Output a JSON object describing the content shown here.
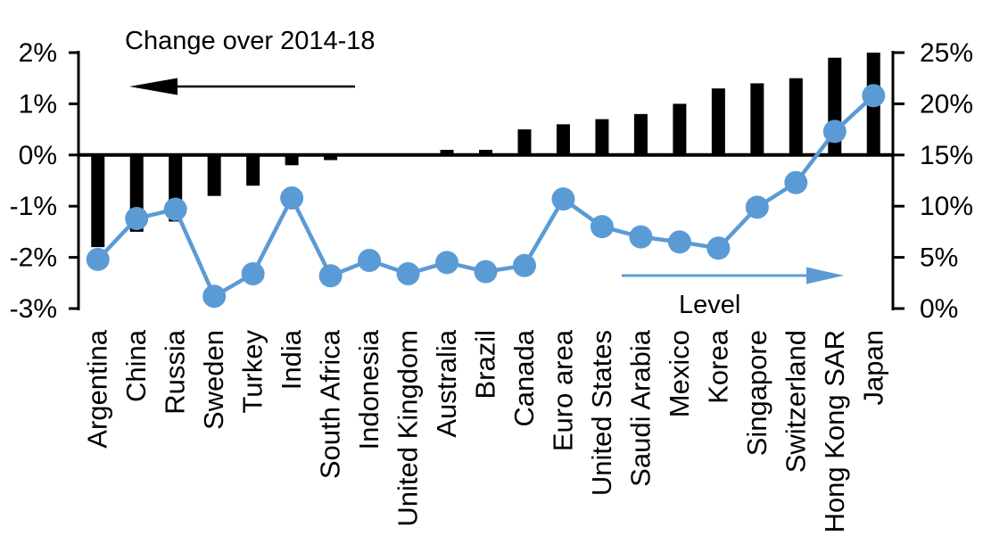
{
  "chart_data": {
    "type": "bar",
    "subtype": "dual-axis bar + line",
    "title": "",
    "categories": [
      "Argentina",
      "China",
      "Russia",
      "Sweden",
      "Turkey",
      "India",
      "South Africa",
      "Indonesia",
      "United Kingdom",
      "Australia",
      "Brazil",
      "Canada",
      "Euro area",
      "United States",
      "Saudi Arabia",
      "Mexico",
      "Korea",
      "Singapore",
      "Switzerland",
      "Hong Kong SAR",
      "Japan"
    ],
    "series": [
      {
        "name": "Change over 2014-18",
        "type": "bar",
        "axis": "left",
        "color": "#000000",
        "values": [
          -1.8,
          -1.5,
          -1.3,
          -0.8,
          -0.6,
          -0.2,
          -0.1,
          0,
          0,
          0.1,
          0.1,
          0.5,
          0.6,
          0.7,
          0.8,
          1.0,
          1.3,
          1.4,
          1.5,
          1.9,
          2.0
        ]
      },
      {
        "name": "Level",
        "type": "line",
        "axis": "right",
        "color": "#5B9BD5",
        "values": [
          4.8,
          8.8,
          9.7,
          1.2,
          3.4,
          10.8,
          3.2,
          4.7,
          3.4,
          4.5,
          3.6,
          4.2,
          10.7,
          8.0,
          7.0,
          6.5,
          5.9,
          9.9,
          12.3,
          17.3,
          20.8
        ]
      }
    ],
    "left_axis": {
      "min": -3,
      "max": 2,
      "tick_values": [
        2,
        1,
        0,
        -1,
        -2,
        -3
      ],
      "tick_labels": [
        "2%",
        "1%",
        "0%",
        "-1%",
        "-2%",
        "-3%"
      ]
    },
    "right_axis": {
      "min": 0,
      "max": 25,
      "tick_values": [
        25,
        20,
        15,
        10,
        5,
        0
      ],
      "tick_labels": [
        "25%",
        "20%",
        "15%",
        "10%",
        "5%",
        "0%"
      ]
    },
    "annotations": {
      "bar_label": "Change over 2014-18",
      "line_label": "Level",
      "bar_arrow_direction": "left",
      "line_arrow_direction": "right"
    },
    "legend_position": "in-plot annotations",
    "grid": false
  }
}
